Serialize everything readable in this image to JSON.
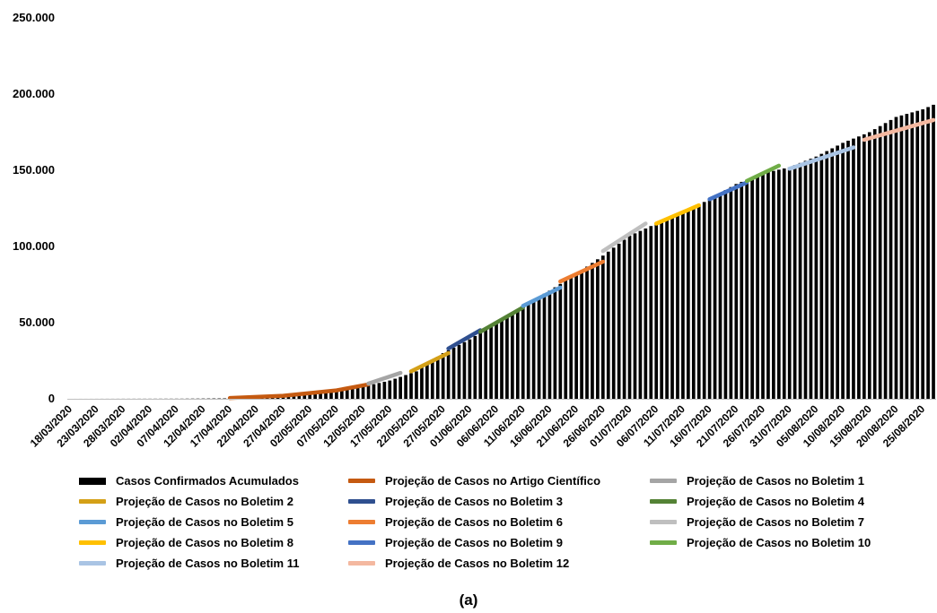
{
  "caption": "(a)",
  "colors": {
    "bars": "#000000",
    "axis": "#bfbfbf",
    "gridless": true
  },
  "chart_data": {
    "type": "bar",
    "grid": false,
    "legend_position": "bottom",
    "title": "",
    "xlabel": "",
    "ylabel": "",
    "ylim": [
      0,
      250000
    ],
    "y_ticks": [
      "0",
      "50.000",
      "100.000",
      "150.000",
      "200.000",
      "250.000"
    ],
    "y_tick_values": [
      0,
      50000,
      100000,
      150000,
      200000,
      250000
    ],
    "x_start": "18/03/2020",
    "x_end": "27/08/2020",
    "x_tick_labels": [
      "18/03/2020",
      "23/03/2020",
      "28/03/2020",
      "02/04/2020",
      "07/04/2020",
      "12/04/2020",
      "17/04/2020",
      "22/04/2020",
      "27/04/2020",
      "02/05/2020",
      "07/05/2020",
      "12/05/2020",
      "17/05/2020",
      "22/05/2020",
      "27/05/2020",
      "01/06/2020",
      "06/06/2020",
      "11/06/2020",
      "16/06/2020",
      "21/06/2020",
      "26/06/2020",
      "01/07/2020",
      "06/07/2020",
      "11/07/2020",
      "16/07/2020",
      "21/07/2020",
      "26/07/2020",
      "31/07/2020",
      "05/08/2020",
      "10/08/2020",
      "15/08/2020",
      "20/08/2020",
      "25/08/2020"
    ],
    "series": [
      {
        "name": "Casos Confirmados Acumulados",
        "type": "bar",
        "color": "#000000",
        "anchors": [
          {
            "x": "18/03/2020",
            "y": 0
          },
          {
            "x": "08/04/2020",
            "y": 100
          },
          {
            "x": "17/04/2020",
            "y": 300
          },
          {
            "x": "27/04/2020",
            "y": 1500
          },
          {
            "x": "07/05/2020",
            "y": 4500
          },
          {
            "x": "12/05/2020",
            "y": 8000
          },
          {
            "x": "17/05/2020",
            "y": 12000
          },
          {
            "x": "22/05/2020",
            "y": 18000
          },
          {
            "x": "27/05/2020",
            "y": 30000
          },
          {
            "x": "01/06/2020",
            "y": 39000
          },
          {
            "x": "06/06/2020",
            "y": 50000
          },
          {
            "x": "11/06/2020",
            "y": 61000
          },
          {
            "x": "16/06/2020",
            "y": 71000
          },
          {
            "x": "21/06/2020",
            "y": 82000
          },
          {
            "x": "26/06/2020",
            "y": 94000
          },
          {
            "x": "01/07/2020",
            "y": 107000
          },
          {
            "x": "06/07/2020",
            "y": 115000
          },
          {
            "x": "11/07/2020",
            "y": 122000
          },
          {
            "x": "16/07/2020",
            "y": 131000
          },
          {
            "x": "21/07/2020",
            "y": 141000
          },
          {
            "x": "26/07/2020",
            "y": 148000
          },
          {
            "x": "31/07/2020",
            "y": 152000
          },
          {
            "x": "05/08/2020",
            "y": 159000
          },
          {
            "x": "10/08/2020",
            "y": 168000
          },
          {
            "x": "15/08/2020",
            "y": 175000
          },
          {
            "x": "20/08/2020",
            "y": 185000
          },
          {
            "x": "25/08/2020",
            "y": 190000
          },
          {
            "x": "27/08/2020",
            "y": 193000
          }
        ]
      },
      {
        "name": "Projeção de Casos no Artigo Científico",
        "type": "line",
        "color": "#c55a11",
        "points": [
          {
            "x": "17/04/2020",
            "y": 500
          },
          {
            "x": "27/04/2020",
            "y": 2000
          },
          {
            "x": "07/05/2020",
            "y": 5500
          },
          {
            "x": "13/05/2020",
            "y": 9500
          }
        ]
      },
      {
        "name": "Projeção de Casos no Boletim 1",
        "type": "line",
        "color": "#a5a5a5",
        "points": [
          {
            "x": "13/05/2020",
            "y": 10000
          },
          {
            "x": "19/05/2020",
            "y": 17000
          }
        ]
      },
      {
        "name": "Projeção de Casos no Boletim 2",
        "type": "line",
        "color": "#d4a017",
        "points": [
          {
            "x": "21/05/2020",
            "y": 18000
          },
          {
            "x": "28/05/2020",
            "y": 30000
          }
        ]
      },
      {
        "name": "Projeção de Casos no Boletim 3",
        "type": "line",
        "color": "#2f4f8f",
        "points": [
          {
            "x": "28/05/2020",
            "y": 33000
          },
          {
            "x": "03/06/2020",
            "y": 45000
          }
        ]
      },
      {
        "name": "Projeção de Casos no Boletim 4",
        "type": "line",
        "color": "#548235",
        "points": [
          {
            "x": "03/06/2020",
            "y": 44000
          },
          {
            "x": "11/06/2020",
            "y": 60000
          }
        ]
      },
      {
        "name": "Projeção de Casos no Boletim 5",
        "type": "line",
        "color": "#5b9bd5",
        "points": [
          {
            "x": "11/06/2020",
            "y": 61000
          },
          {
            "x": "18/06/2020",
            "y": 73000
          }
        ]
      },
      {
        "name": "Projeção de Casos no Boletim 6",
        "type": "line",
        "color": "#ed7d31",
        "points": [
          {
            "x": "18/06/2020",
            "y": 77000
          },
          {
            "x": "26/06/2020",
            "y": 90000
          }
        ]
      },
      {
        "name": "Projeção de Casos no Boletim 7",
        "type": "line",
        "color": "#bfbfbf",
        "points": [
          {
            "x": "26/06/2020",
            "y": 97000
          },
          {
            "x": "04/07/2020",
            "y": 115000
          }
        ]
      },
      {
        "name": "Projeção de Casos no Boletim 8",
        "type": "line",
        "color": "#ffc000",
        "points": [
          {
            "x": "06/07/2020",
            "y": 115000
          },
          {
            "x": "14/07/2020",
            "y": 127000
          }
        ]
      },
      {
        "name": "Projeção de Casos no Boletim 9",
        "type": "line",
        "color": "#4472c4",
        "points": [
          {
            "x": "16/07/2020",
            "y": 131000
          },
          {
            "x": "23/07/2020",
            "y": 142000
          }
        ]
      },
      {
        "name": "Projeção de Casos no Boletim 10",
        "type": "line",
        "color": "#70ad47",
        "points": [
          {
            "x": "23/07/2020",
            "y": 143000
          },
          {
            "x": "29/07/2020",
            "y": 153000
          }
        ]
      },
      {
        "name": "Projeção de Casos no Boletim 11",
        "type": "line",
        "color": "#a9c4e4",
        "points": [
          {
            "x": "31/07/2020",
            "y": 151000
          },
          {
            "x": "12/08/2020",
            "y": 165000
          }
        ]
      },
      {
        "name": "Projeção de Casos no Boletim 12",
        "type": "line",
        "color": "#f4b8a0",
        "points": [
          {
            "x": "14/08/2020",
            "y": 170000
          },
          {
            "x": "27/08/2020",
            "y": 183000
          }
        ]
      }
    ]
  }
}
